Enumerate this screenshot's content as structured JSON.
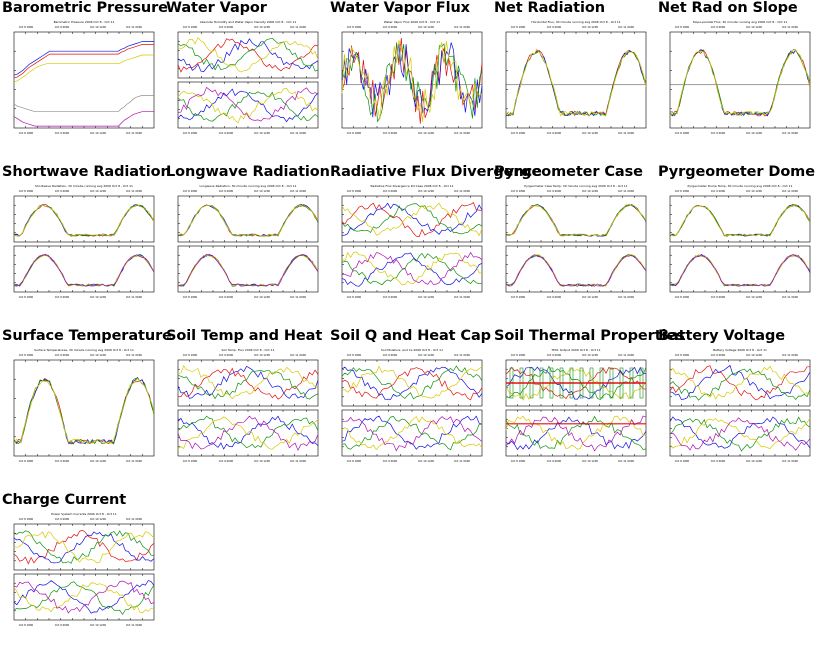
{
  "panels": [
    {
      "title": "Barometric Pressure",
      "subtitle": "Barometric Pressure 2006 Oct 8 - Oct 11",
      "split": false
    },
    {
      "title": "Water Vapor",
      "subtitle": "Absolute Humidity and Water Vapor Density 2006 Oct 8 - Oct 11",
      "split": true
    },
    {
      "title": "Water Vapor Flux",
      "subtitle": "Water Vapor Flux 2006 Oct 8 - Oct 11",
      "split": false
    },
    {
      "title": "Net Radiation",
      "subtitle": "Horizontal Flux, 30 minute running avg 2006 Oct 8 - Oct 11",
      "split": false
    },
    {
      "title": "Net Rad on Slope",
      "subtitle": "Slope-parallel Flux, 30 minute running avg 2006 Oct 8 - Oct 11",
      "split": false
    },
    {
      "title": "Shortwave Radiation",
      "subtitle": "Shortwave Radiation, 30 minute running avg 2006 Oct 8 - Oct 11",
      "split": true
    },
    {
      "title": "Longwave Radiation",
      "subtitle": "Longwave Radiation, 30 minute running avg 2006 Oct 8 - Oct 11",
      "split": true
    },
    {
      "title": "Radiative Flux Divergence",
      "subtitle": "Radiative Flux Divergence Rd Case 2006 Oct 8 - Oct 11",
      "split": true
    },
    {
      "title": "Pyrgeometer Case",
      "subtitle": "Pyrgeometer Case Temp, 30 minute running avg 2006 Oct 8 - Oct 11",
      "split": true
    },
    {
      "title": "Pyrgeometer Dome",
      "subtitle": "Pyrgeometer Dome Temp, 30 minute running avg 2006 Oct 8 - Oct 11",
      "split": true
    },
    {
      "title": "Surface Temperature",
      "subtitle": "Surface Temperatures, 30 minute running avg 2006 Oct 8 - Oct 11",
      "split": false
    },
    {
      "title": "Soil Temp and Heat",
      "subtitle": "Soil Temp, Flux 2006 Oct 8 - Oct 11",
      "split": true
    },
    {
      "title": "Soil Q and Heat Cap",
      "subtitle": "Soil Moisture, and Cs 2006 Oct 8 - Oct 11",
      "split": true
    },
    {
      "title": "Soil Thermal Properties",
      "subtitle": "TP01 Output 2006 Oct 8 - Oct 11",
      "split": true
    },
    {
      "title": "Battery Voltage",
      "subtitle": "Battery Voltage 2006 Oct 8 - Oct 11",
      "split": true
    },
    {
      "title": "Charge Current",
      "subtitle": "Power System Currents 2006 Oct 8 - Oct 11",
      "split": true
    }
  ],
  "tick_labels": [
    "Oct 8 1800",
    "Oct 9 0000",
    "Oct 10 1200",
    "Oct 11 0000"
  ],
  "colors": {
    "red": "#e01010",
    "blue": "#1010e0",
    "green": "#109010",
    "yellow": "#d8c800",
    "magenta": "#b010b0",
    "gray": "#909090",
    "black": "#000000"
  },
  "chart_data": [
    {
      "type": "line",
      "title": "Barometric Pressure",
      "series": [
        {
          "color": "#1010e0",
          "values": [
            0.55,
            0.56,
            0.58,
            0.6,
            0.63,
            0.66,
            0.68,
            0.7,
            0.72,
            0.74,
            0.76,
            0.78,
            0.8,
            0.8,
            0.8,
            0.8,
            0.8,
            0.8,
            0.8,
            0.8,
            0.8,
            0.8,
            0.8,
            0.8,
            0.8,
            0.8,
            0.8,
            0.8,
            0.8,
            0.8,
            0.8,
            0.8,
            0.8,
            0.8,
            0.8,
            0.8,
            0.82,
            0.83,
            0.85,
            0.86,
            0.87,
            0.88,
            0.89,
            0.9,
            0.9,
            0.9,
            0.9,
            0.9
          ]
        },
        {
          "color": "#e01010",
          "values": [
            0.52,
            0.53,
            0.55,
            0.57,
            0.6,
            0.63,
            0.65,
            0.67,
            0.69,
            0.71,
            0.73,
            0.75,
            0.77,
            0.77,
            0.77,
            0.77,
            0.77,
            0.77,
            0.77,
            0.77,
            0.77,
            0.77,
            0.77,
            0.77,
            0.77,
            0.77,
            0.77,
            0.77,
            0.77,
            0.77,
            0.77,
            0.77,
            0.77,
            0.77,
            0.77,
            0.77,
            0.79,
            0.8,
            0.82,
            0.83,
            0.84,
            0.85,
            0.86,
            0.87,
            0.87,
            0.87,
            0.87,
            0.87
          ]
        },
        {
          "color": "#d8c800",
          "values": [
            0.48,
            0.49,
            0.51,
            0.53,
            0.55,
            0.58,
            0.6,
            0.62,
            0.64,
            0.65,
            0.66,
            0.67,
            0.67,
            0.67,
            0.67,
            0.67,
            0.67,
            0.67,
            0.67,
            0.67,
            0.67,
            0.67,
            0.67,
            0.67,
            0.67,
            0.67,
            0.67,
            0.67,
            0.67,
            0.67,
            0.67,
            0.67,
            0.67,
            0.67,
            0.67,
            0.67,
            0.68,
            0.7,
            0.71,
            0.72,
            0.73,
            0.74,
            0.75,
            0.76,
            0.76,
            0.76,
            0.76,
            0.76
          ]
        },
        {
          "color": "#909090",
          "values": [
            0.25,
            0.23,
            0.22,
            0.21,
            0.2,
            0.19,
            0.18,
            0.17,
            0.17,
            0.17,
            0.17,
            0.17,
            0.17,
            0.17,
            0.17,
            0.17,
            0.17,
            0.17,
            0.17,
            0.17,
            0.17,
            0.17,
            0.17,
            0.17,
            0.17,
            0.17,
            0.17,
            0.17,
            0.17,
            0.17,
            0.17,
            0.17,
            0.17,
            0.17,
            0.17,
            0.17,
            0.2,
            0.22,
            0.25,
            0.27,
            0.3,
            0.32,
            0.33,
            0.34,
            0.34,
            0.34,
            0.34,
            0.34
          ]
        },
        {
          "color": "#b010b0",
          "values": [
            0.12,
            0.1,
            0.08,
            0.06,
            0.05,
            0.04,
            0.03,
            0.02,
            0.02,
            0.02,
            0.02,
            0.02,
            0.02,
            0.02,
            0.02,
            0.02,
            0.02,
            0.02,
            0.02,
            0.02,
            0.02,
            0.02,
            0.02,
            0.02,
            0.02,
            0.02,
            0.02,
            0.02,
            0.02,
            0.02,
            0.02,
            0.02,
            0.02,
            0.02,
            0.02,
            0.02,
            0.05,
            0.08,
            0.1,
            0.12,
            0.14,
            0.15,
            0.16,
            0.17,
            0.17,
            0.17,
            0.17,
            0.17
          ]
        }
      ]
    }
  ]
}
